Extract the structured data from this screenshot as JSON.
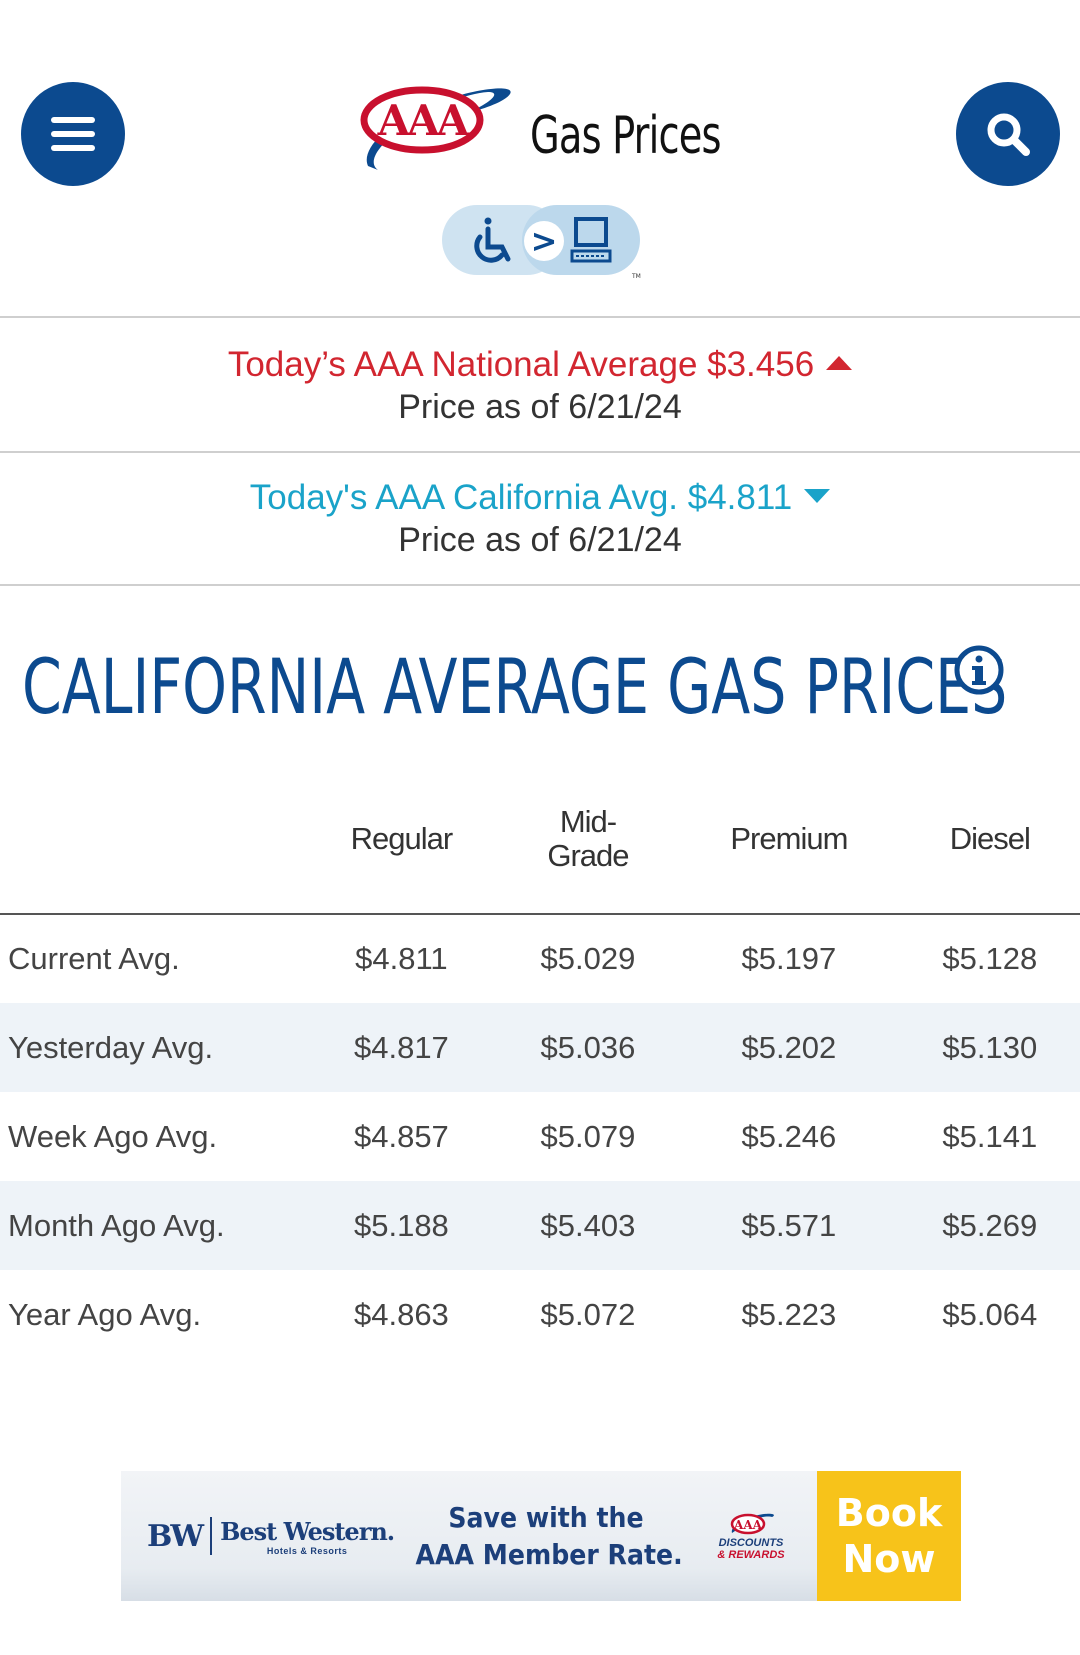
{
  "header": {
    "menu_icon": "hamburger-menu-icon",
    "search_icon": "search-icon",
    "logo_text": "AAA",
    "title": "Gas Prices",
    "accessibility_icon": "wheelchair-to-computer-icon",
    "accessibility_arrow": ">",
    "accessibility_tm": "TM"
  },
  "national": {
    "text": "Today’s AAA National Average $3.456",
    "trend": "up",
    "asof": "Price as of 6/21/24",
    "color": "#d22630"
  },
  "state": {
    "text": "Today's AAA California Avg. $4.811",
    "trend": "down",
    "asof": "Price as of 6/21/24",
    "color": "#1aa3c9"
  },
  "section": {
    "title": "CALIFORNIA AVERAGE GAS PRICES",
    "info_icon": "info-icon"
  },
  "table": {
    "headers": [
      "Regular",
      "Mid-\nGrade",
      "Premium",
      "Diesel"
    ],
    "rows": [
      {
        "label": "Current Avg.",
        "values": [
          "$4.811",
          "$5.029",
          "$5.197",
          "$5.128"
        ]
      },
      {
        "label": "Yesterday Avg.",
        "values": [
          "$4.817",
          "$5.036",
          "$5.202",
          "$5.130"
        ]
      },
      {
        "label": "Week Ago Avg.",
        "values": [
          "$4.857",
          "$5.079",
          "$5.246",
          "$5.141"
        ]
      },
      {
        "label": "Month Ago Avg.",
        "values": [
          "$5.188",
          "$5.403",
          "$5.571",
          "$5.269"
        ]
      },
      {
        "label": "Year Ago Avg.",
        "values": [
          "$4.863",
          "$5.072",
          "$5.223",
          "$5.064"
        ]
      }
    ]
  },
  "ad": {
    "bw_mark": "BW",
    "bw_name": "Best Western.",
    "bw_sub": "Hotels & Resorts",
    "message_line1": "Save with the",
    "message_line2": "AAA Member Rate.",
    "rewards_logo": "AAA",
    "rewards_line1": "DISCOUNTS",
    "rewards_line2": "& REWARDS",
    "cta_line1": "Book",
    "cta_line2": "Now"
  },
  "colors": {
    "brand_blue": "#0c4a8f",
    "national_red": "#d22630",
    "state_blue": "#1aa3c9",
    "row_stripe": "#eef3f8",
    "cta_yellow": "#f7c31a"
  }
}
